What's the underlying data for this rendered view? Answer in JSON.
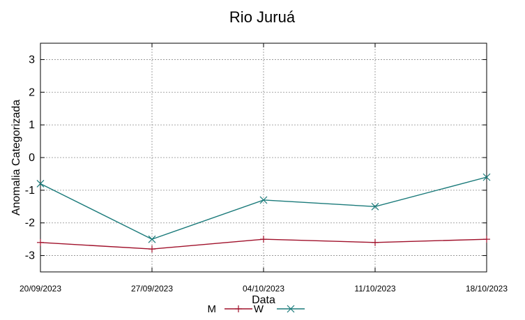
{
  "chart_data": {
    "type": "line",
    "title": "Rio Juruá",
    "xlabel": "Data",
    "ylabel": "Anomalia Categorizada",
    "x": [
      "20/09/2023",
      "27/09/2023",
      "04/10/2023",
      "11/10/2023",
      "18/10/2023"
    ],
    "ylim": [
      -3.5,
      3.5
    ],
    "yticks": [
      "-3",
      "-2",
      "-1",
      "0",
      "1",
      "2",
      "3"
    ],
    "grid": true,
    "legend_position": "bottom-center",
    "series": [
      {
        "name": "M",
        "color": "#a0102a",
        "marker": "plus",
        "values": [
          -2.6,
          -2.8,
          -2.5,
          -2.6,
          -2.5
        ]
      },
      {
        "name": "W",
        "color": "#1a7a7a",
        "marker": "cross",
        "values": [
          -0.8,
          -2.5,
          -1.3,
          -1.5,
          -0.6
        ]
      }
    ]
  }
}
